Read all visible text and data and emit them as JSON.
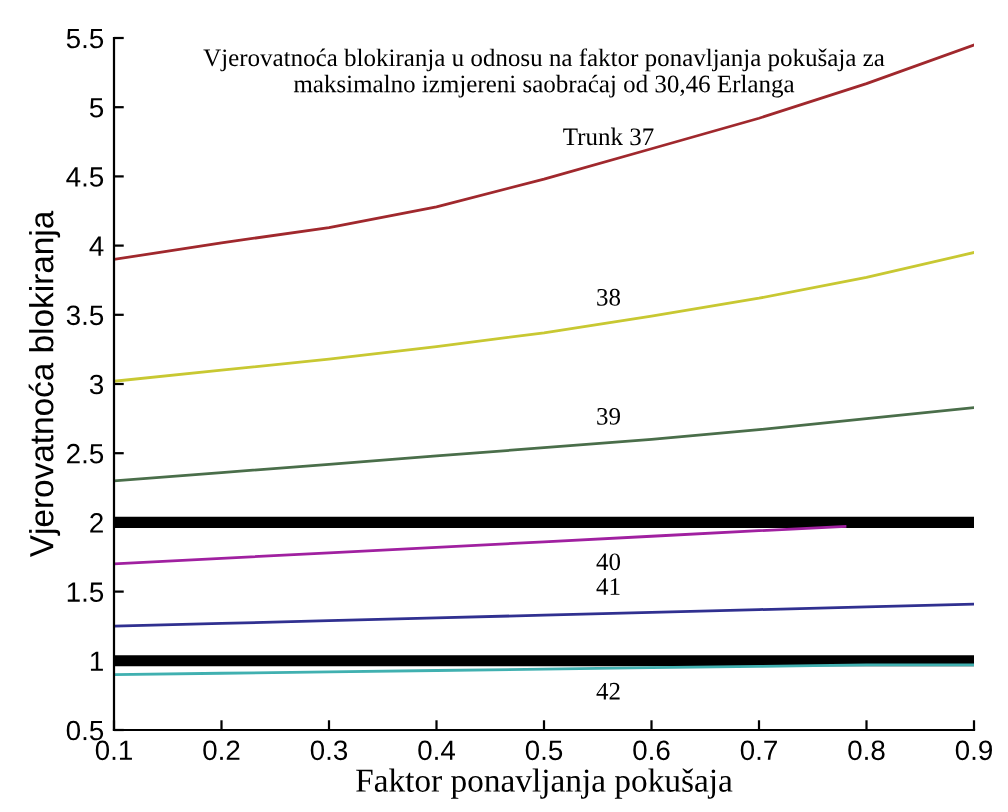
{
  "chart_data": {
    "type": "line",
    "title": "Vjerovatnoća blokiranja u odnosu na faktor ponavljanja pokušaja za\nmaksimalno izmjereni saobraćaj od 30,46 Erlanga",
    "xlabel": "Faktor ponavljanja pokušaja",
    "ylabel": "Vjerovatnoća blokiranja",
    "x": [
      0.1,
      0.2,
      0.3,
      0.4,
      0.5,
      0.6,
      0.7,
      0.8,
      0.9
    ],
    "series": [
      {
        "name": "Trunk 37",
        "color": "#a0282d",
        "values": [
          3.9,
          4.02,
          4.13,
          4.28,
          4.48,
          4.7,
          4.92,
          5.17,
          5.45
        ]
      },
      {
        "name": "38",
        "color": "#c8c832",
        "values": [
          3.02,
          3.1,
          3.18,
          3.27,
          3.37,
          3.49,
          3.62,
          3.77,
          3.95
        ]
      },
      {
        "name": "39",
        "color": "#4a6e4a",
        "values": [
          2.3,
          2.36,
          2.42,
          2.48,
          2.54,
          2.6,
          2.67,
          2.75,
          2.83
        ]
      },
      {
        "name": "40",
        "color": "#a020a0",
        "x": [
          0.1,
          0.2,
          0.3,
          0.4,
          0.5,
          0.6,
          0.7,
          0.78
        ],
        "values": [
          1.7,
          1.74,
          1.78,
          1.82,
          1.86,
          1.9,
          1.94,
          1.97
        ]
      },
      {
        "name": "41",
        "color": "#303090",
        "values": [
          1.25,
          1.27,
          1.29,
          1.31,
          1.33,
          1.35,
          1.37,
          1.39,
          1.41
        ]
      },
      {
        "name": "42",
        "color": "#40b0b0",
        "values": [
          0.9,
          0.91,
          0.92,
          0.93,
          0.94,
          0.95,
          0.96,
          0.97,
          0.97
        ]
      }
    ],
    "ref_lines": [
      {
        "axis": "y",
        "value": 2,
        "color": "#000000"
      },
      {
        "axis": "y",
        "value": 1,
        "color": "#000000"
      }
    ],
    "xlim": [
      0.1,
      0.9
    ],
    "ylim": [
      0.5,
      5.5
    ],
    "xticks": [
      0.1,
      0.2,
      0.3,
      0.4,
      0.5,
      0.6,
      0.7,
      0.8,
      0.9
    ],
    "yticks": [
      0.5,
      1,
      1.5,
      2,
      2.5,
      3,
      3.5,
      4,
      4.5,
      5,
      5.5
    ],
    "grid": false,
    "legend": false
  }
}
